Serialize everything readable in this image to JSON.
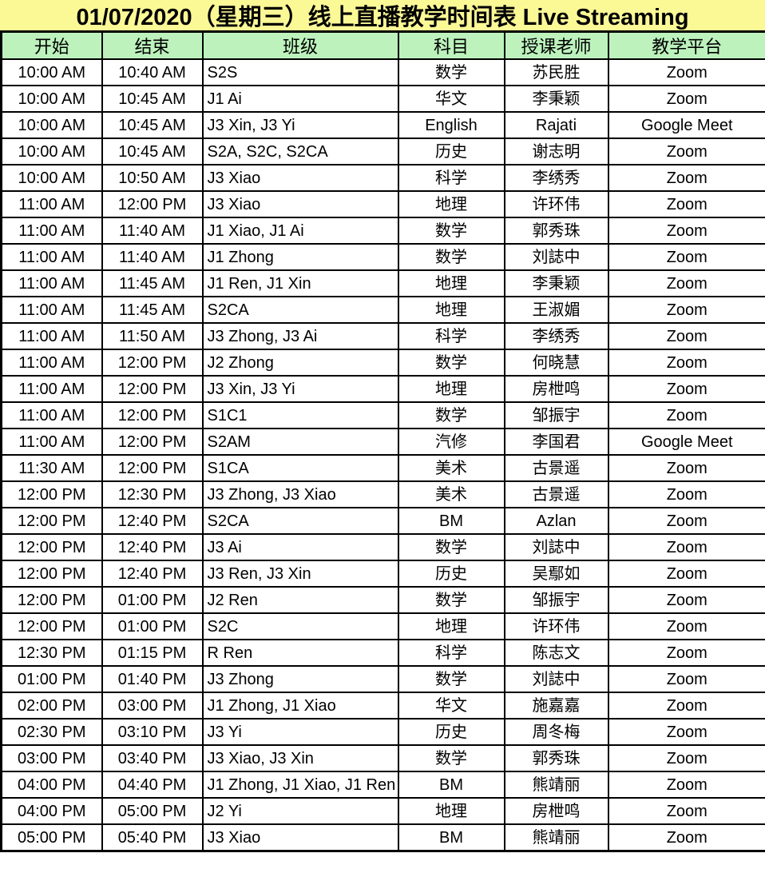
{
  "title": "01/07/2020（星期三）线上直播教学时间表 Live Streaming",
  "colors": {
    "title_bg": "#FBF896",
    "header_bg": "#BDF2BD",
    "border": "#000000",
    "row_bg": "#FFFFFF",
    "text": "#000000"
  },
  "table": {
    "headers": [
      "开始",
      "结束",
      "班级",
      "科目",
      "授课老师",
      "教学平台"
    ],
    "column_keys": [
      "start",
      "end",
      "class",
      "subject",
      "teacher",
      "platform"
    ],
    "rows": [
      [
        "10:00 AM",
        "10:40 AM",
        "S2S",
        "数学",
        "苏民胜",
        "Zoom"
      ],
      [
        "10:00 AM",
        "10:45 AM",
        "J1 Ai",
        "华文",
        "李秉颖",
        "Zoom"
      ],
      [
        "10:00 AM",
        "10:45 AM",
        "J3 Xin, J3 Yi",
        "English",
        "Rajati",
        "Google Meet"
      ],
      [
        "10:00 AM",
        "10:45 AM",
        "S2A, S2C, S2CA",
        "历史",
        "谢志明",
        "Zoom"
      ],
      [
        "10:00 AM",
        "10:50 AM",
        "J3 Xiao",
        "科学",
        "李绣秀",
        "Zoom"
      ],
      [
        "11:00 AM",
        "12:00 PM",
        "J3 Xiao",
        "地理",
        "许环伟",
        "Zoom"
      ],
      [
        "11:00 AM",
        "11:40 AM",
        "J1 Xiao, J1 Ai",
        "数学",
        "郭秀珠",
        "Zoom"
      ],
      [
        "11:00 AM",
        "11:40 AM",
        "J1 Zhong",
        "数学",
        "刘誌中",
        "Zoom"
      ],
      [
        "11:00 AM",
        "11:45 AM",
        "J1 Ren, J1 Xin",
        "地理",
        "李秉颖",
        "Zoom"
      ],
      [
        "11:00 AM",
        "11:45 AM",
        "S2CA",
        "地理",
        "王淑媚",
        "Zoom"
      ],
      [
        "11:00 AM",
        "11:50 AM",
        "J3 Zhong, J3 Ai",
        "科学",
        "李绣秀",
        "Zoom"
      ],
      [
        "11:00 AM",
        "12:00 PM",
        "J2 Zhong",
        "数学",
        "何晓慧",
        "Zoom"
      ],
      [
        "11:00 AM",
        "12:00 PM",
        "J3 Xin, J3 Yi",
        "地理",
        "房枻鸣",
        "Zoom"
      ],
      [
        "11:00 AM",
        "12:00 PM",
        "S1C1",
        "数学",
        "邹振宇",
        "Zoom"
      ],
      [
        "11:00 AM",
        "12:00 PM",
        "S2AM",
        "汽修",
        "李国君",
        "Google Meet"
      ],
      [
        "11:30 AM",
        "12:00 PM",
        "S1CA",
        "美术",
        "古景遥",
        "Zoom"
      ],
      [
        "12:00 PM",
        "12:30 PM",
        "J3 Zhong, J3 Xiao",
        "美术",
        "古景遥",
        "Zoom"
      ],
      [
        "12:00 PM",
        "12:40 PM",
        "S2CA",
        "BM",
        "Azlan",
        "Zoom"
      ],
      [
        "12:00 PM",
        "12:40 PM",
        "J3 Ai",
        "数学",
        "刘誌中",
        "Zoom"
      ],
      [
        "12:00 PM",
        "12:40 PM",
        "J3 Ren, J3 Xin",
        "历史",
        "吴鄢如",
        "Zoom"
      ],
      [
        "12:00 PM",
        "01:00 PM",
        "J2 Ren",
        "数学",
        "邹振宇",
        "Zoom"
      ],
      [
        "12:00 PM",
        "01:00 PM",
        "S2C",
        "地理",
        "许环伟",
        "Zoom"
      ],
      [
        "12:30 PM",
        "01:15 PM",
        "R Ren",
        "科学",
        "陈志文",
        "Zoom"
      ],
      [
        "01:00 PM",
        "01:40 PM",
        "J3 Zhong",
        "数学",
        "刘誌中",
        "Zoom"
      ],
      [
        "02:00 PM",
        "03:00 PM",
        "J1 Zhong, J1 Xiao",
        "华文",
        "施嘉嘉",
        "Zoom"
      ],
      [
        "02:30 PM",
        "03:10 PM",
        "J3 Yi",
        "历史",
        "周冬梅",
        "Zoom"
      ],
      [
        "03:00 PM",
        "03:40 PM",
        "J3 Xiao, J3 Xin",
        "数学",
        "郭秀珠",
        "Zoom"
      ],
      [
        "04:00 PM",
        "04:40 PM",
        "J1 Zhong, J1 Xiao, J1 Ren",
        "BM",
        "熊靖丽",
        "Zoom"
      ],
      [
        "04:00 PM",
        "05:00 PM",
        "J2 Yi",
        "地理",
        "房枻鸣",
        "Zoom"
      ],
      [
        "05:00 PM",
        "05:40 PM",
        "J3 Xiao",
        "BM",
        "熊靖丽",
        "Zoom"
      ]
    ]
  }
}
